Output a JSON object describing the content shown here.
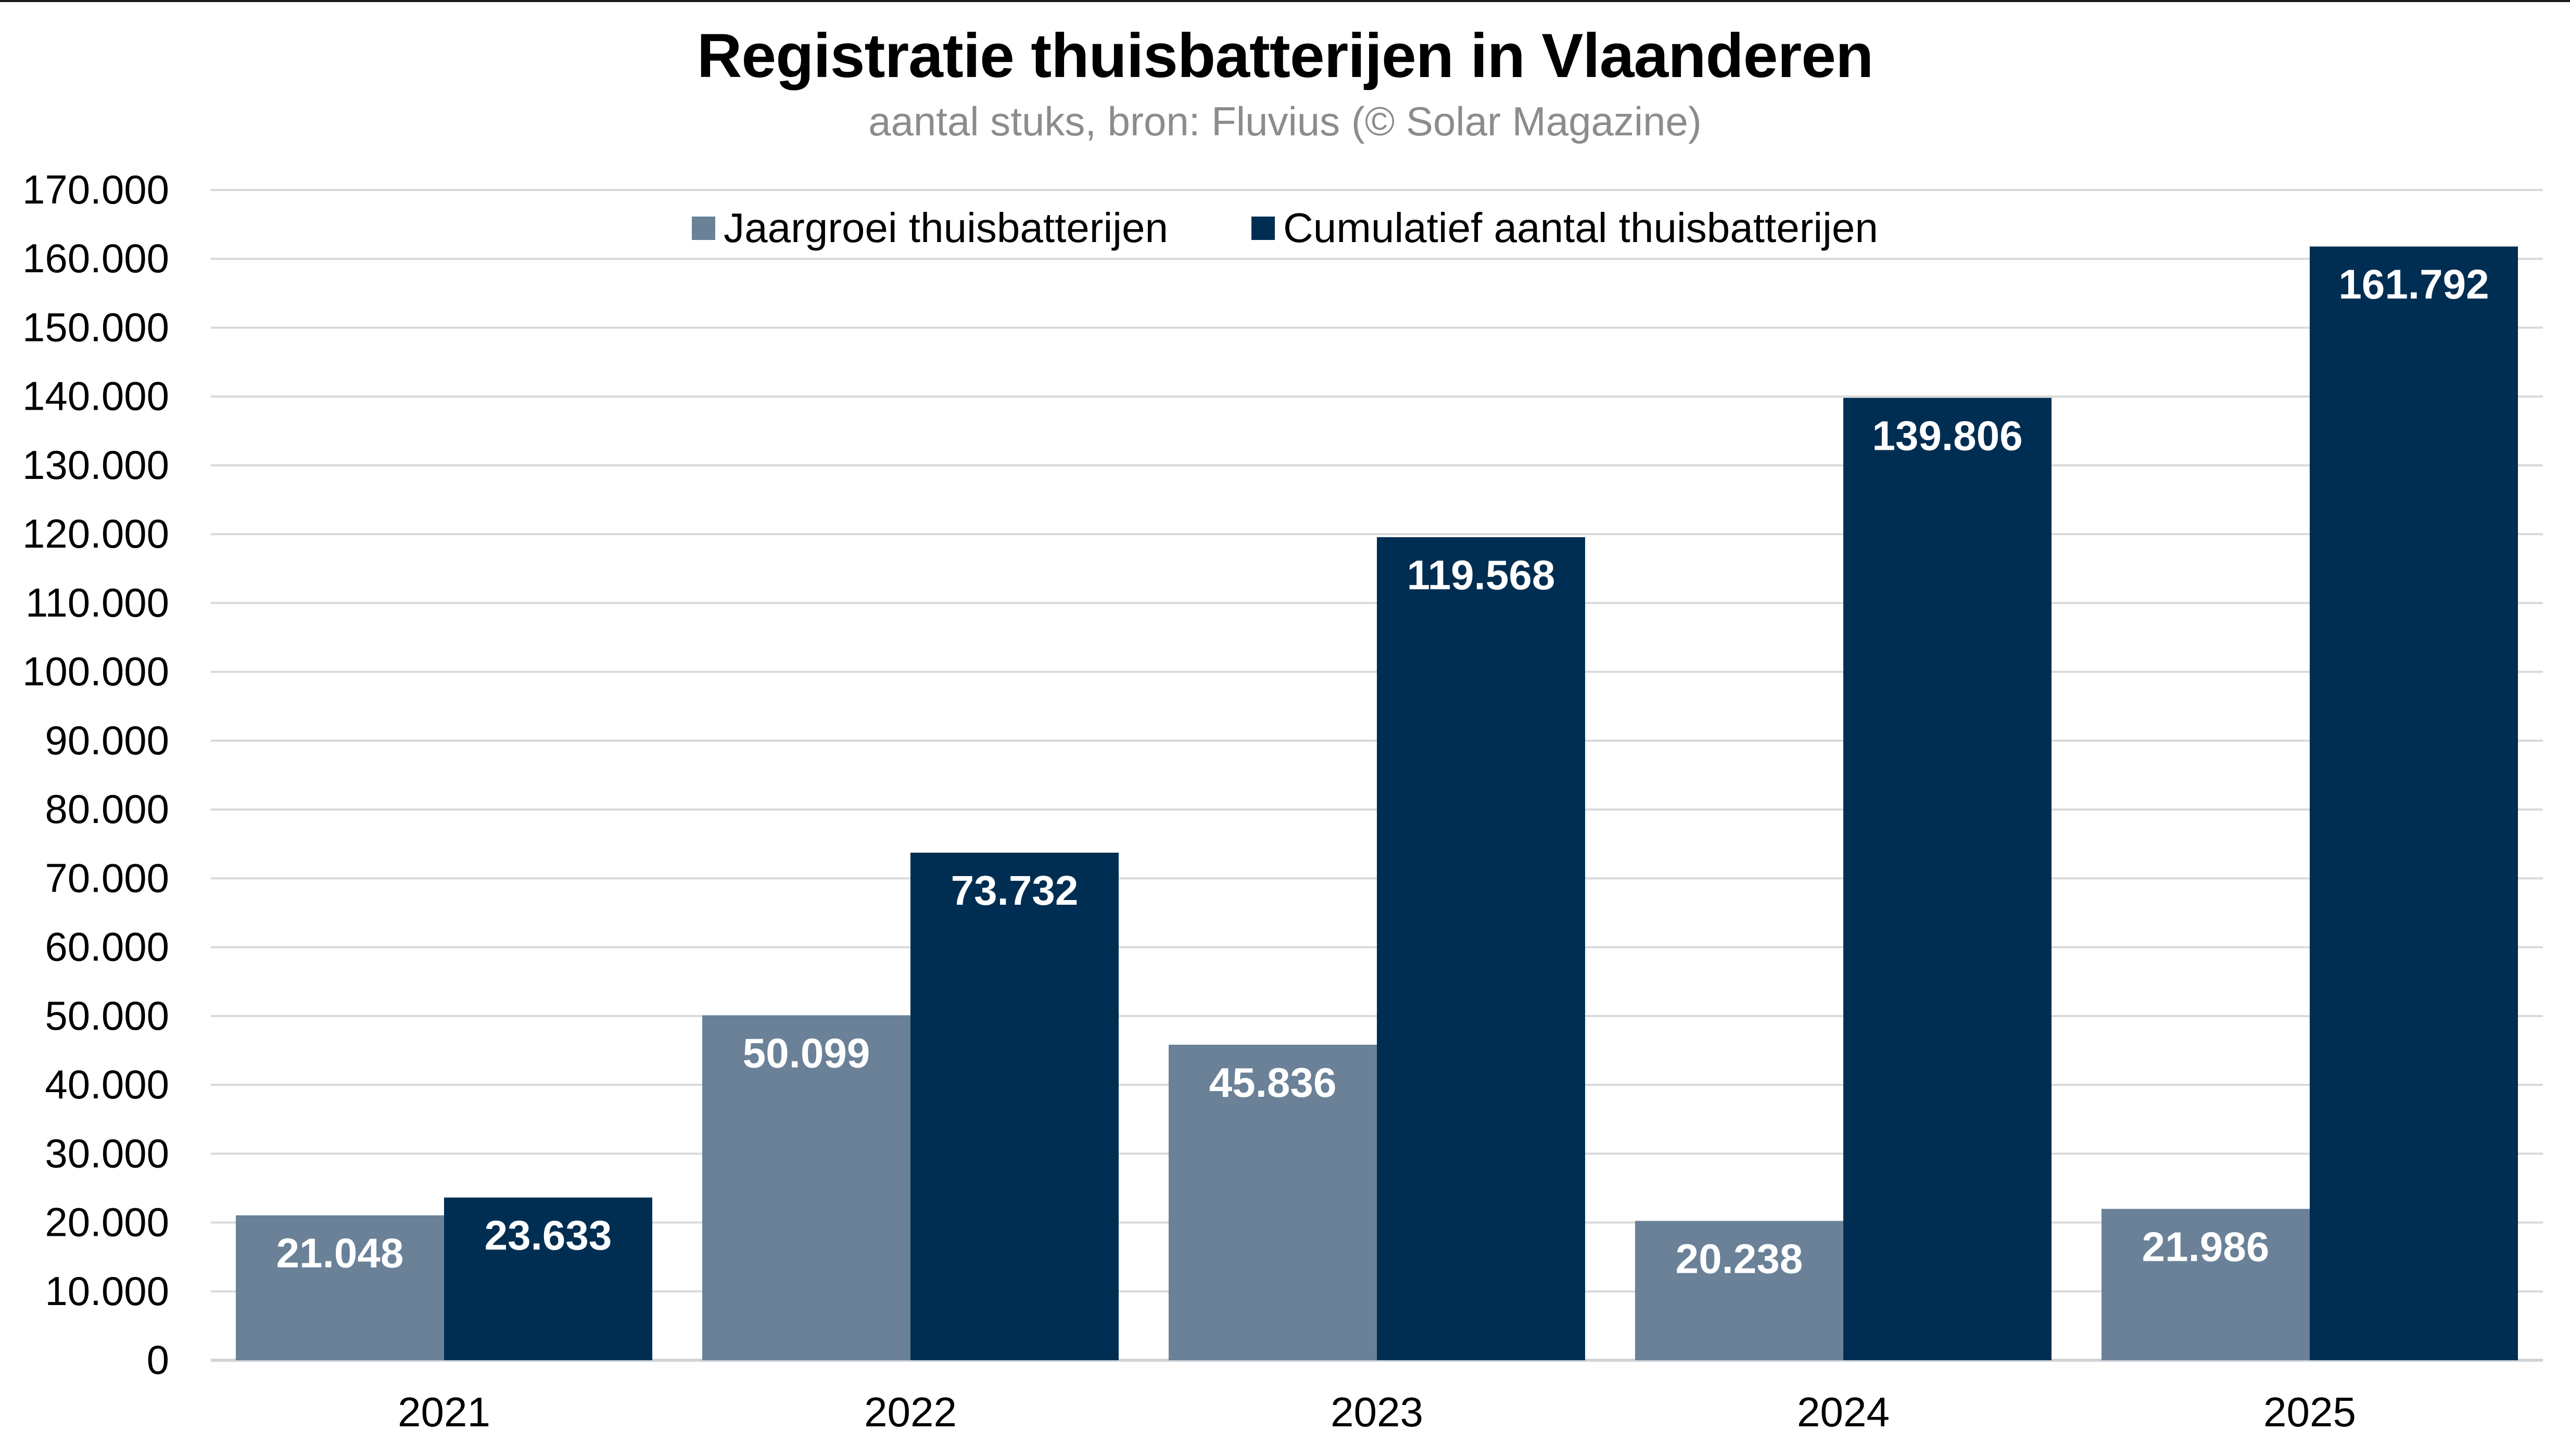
{
  "chart_data": {
    "type": "bar",
    "title": "Registratie thuisbatterijen in Vlaanderen",
    "subtitle": "aantal stuks, bron: Fluvius (© Solar Magazine)",
    "xlabel": "",
    "ylabel": "",
    "categories": [
      "2021",
      "2022",
      "2023",
      "2024",
      "2025"
    ],
    "series": [
      {
        "name": "Jaargroei thuisbatterijen",
        "color": "#6a8198",
        "values": [
          21048,
          50099,
          45836,
          20238,
          21986
        ],
        "labels": [
          "21.048",
          "50.099",
          "45.836",
          "20.238",
          "21.986"
        ]
      },
      {
        "name": "Cumulatief aantal thuisbatterijen",
        "color": "#002e52",
        "values": [
          23633,
          73732,
          119568,
          139806,
          161792
        ],
        "labels": [
          "23.633",
          "73.732",
          "119.568",
          "139.806",
          "161.792"
        ]
      }
    ],
    "ylim": [
      0,
      170000
    ],
    "yticks": [
      0,
      10000,
      20000,
      30000,
      40000,
      50000,
      60000,
      70000,
      80000,
      90000,
      100000,
      110000,
      120000,
      130000,
      140000,
      150000,
      160000,
      170000
    ],
    "ytick_labels": [
      "0",
      "10.000",
      "20.000",
      "30.000",
      "40.000",
      "50.000",
      "60.000",
      "70.000",
      "80.000",
      "90.000",
      "100.000",
      "110.000",
      "120.000",
      "130.000",
      "140.000",
      "150.000",
      "160.000",
      "170.000"
    ],
    "grid": true,
    "legend_position": "top-center",
    "data_label_color": "#ffffff",
    "gridline_color": "#d9d9d9"
  }
}
